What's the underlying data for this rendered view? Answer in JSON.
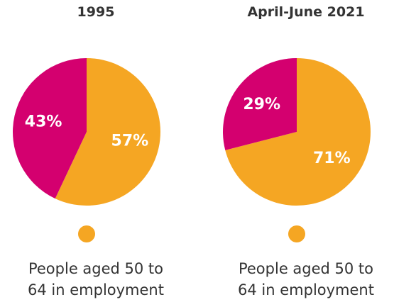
{
  "chart_data": [
    {
      "type": "pie",
      "title": "1995",
      "categories": [
        "People aged 50 to 64 in employment",
        null
      ],
      "values": [
        57,
        43
      ],
      "value_labels": [
        "57%",
        "43%"
      ],
      "colors": [
        "#f5a623",
        "#d4006f"
      ]
    },
    {
      "type": "pie",
      "title": "April-June 2021",
      "categories": [
        "People aged 50 to 64 in employment",
        null
      ],
      "values": [
        71,
        29
      ],
      "value_labels": [
        "71%",
        "29%"
      ],
      "colors": [
        "#f5a623",
        "#d4006f"
      ]
    }
  ]
}
